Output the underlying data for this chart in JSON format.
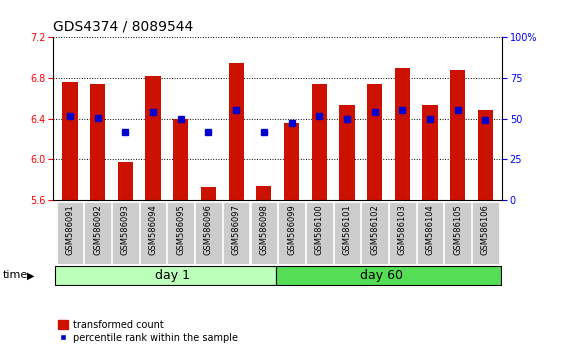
{
  "title": "GDS4374 / 8089544",
  "samples": [
    "GSM586091",
    "GSM586092",
    "GSM586093",
    "GSM586094",
    "GSM586095",
    "GSM586096",
    "GSM586097",
    "GSM586098",
    "GSM586099",
    "GSM586100",
    "GSM586101",
    "GSM586102",
    "GSM586103",
    "GSM586104",
    "GSM586105",
    "GSM586106"
  ],
  "bar_heights": [
    6.76,
    6.74,
    5.97,
    6.82,
    6.4,
    5.73,
    6.95,
    5.74,
    6.36,
    6.74,
    6.53,
    6.74,
    6.9,
    6.53,
    6.88,
    6.48
  ],
  "blue_values": [
    6.43,
    6.41,
    6.27,
    6.46,
    6.4,
    6.27,
    6.48,
    6.27,
    6.36,
    6.43,
    6.4,
    6.46,
    6.48,
    6.4,
    6.48,
    6.39
  ],
  "ylim": [
    5.6,
    7.2
  ],
  "yticks": [
    5.6,
    6.0,
    6.4,
    6.8,
    7.2
  ],
  "right_yticks": [
    0,
    25,
    50,
    75,
    100
  ],
  "bar_color": "#cc1100",
  "blue_color": "#0000cc",
  "day1_color": "#bbffbb",
  "day60_color": "#55dd55",
  "day1_count": 8,
  "day60_count": 8,
  "bar_width": 0.55,
  "title_fontsize": 10,
  "tick_fontsize": 7,
  "label_fontsize": 6,
  "day_fontsize": 9,
  "legend_fontsize": 7
}
